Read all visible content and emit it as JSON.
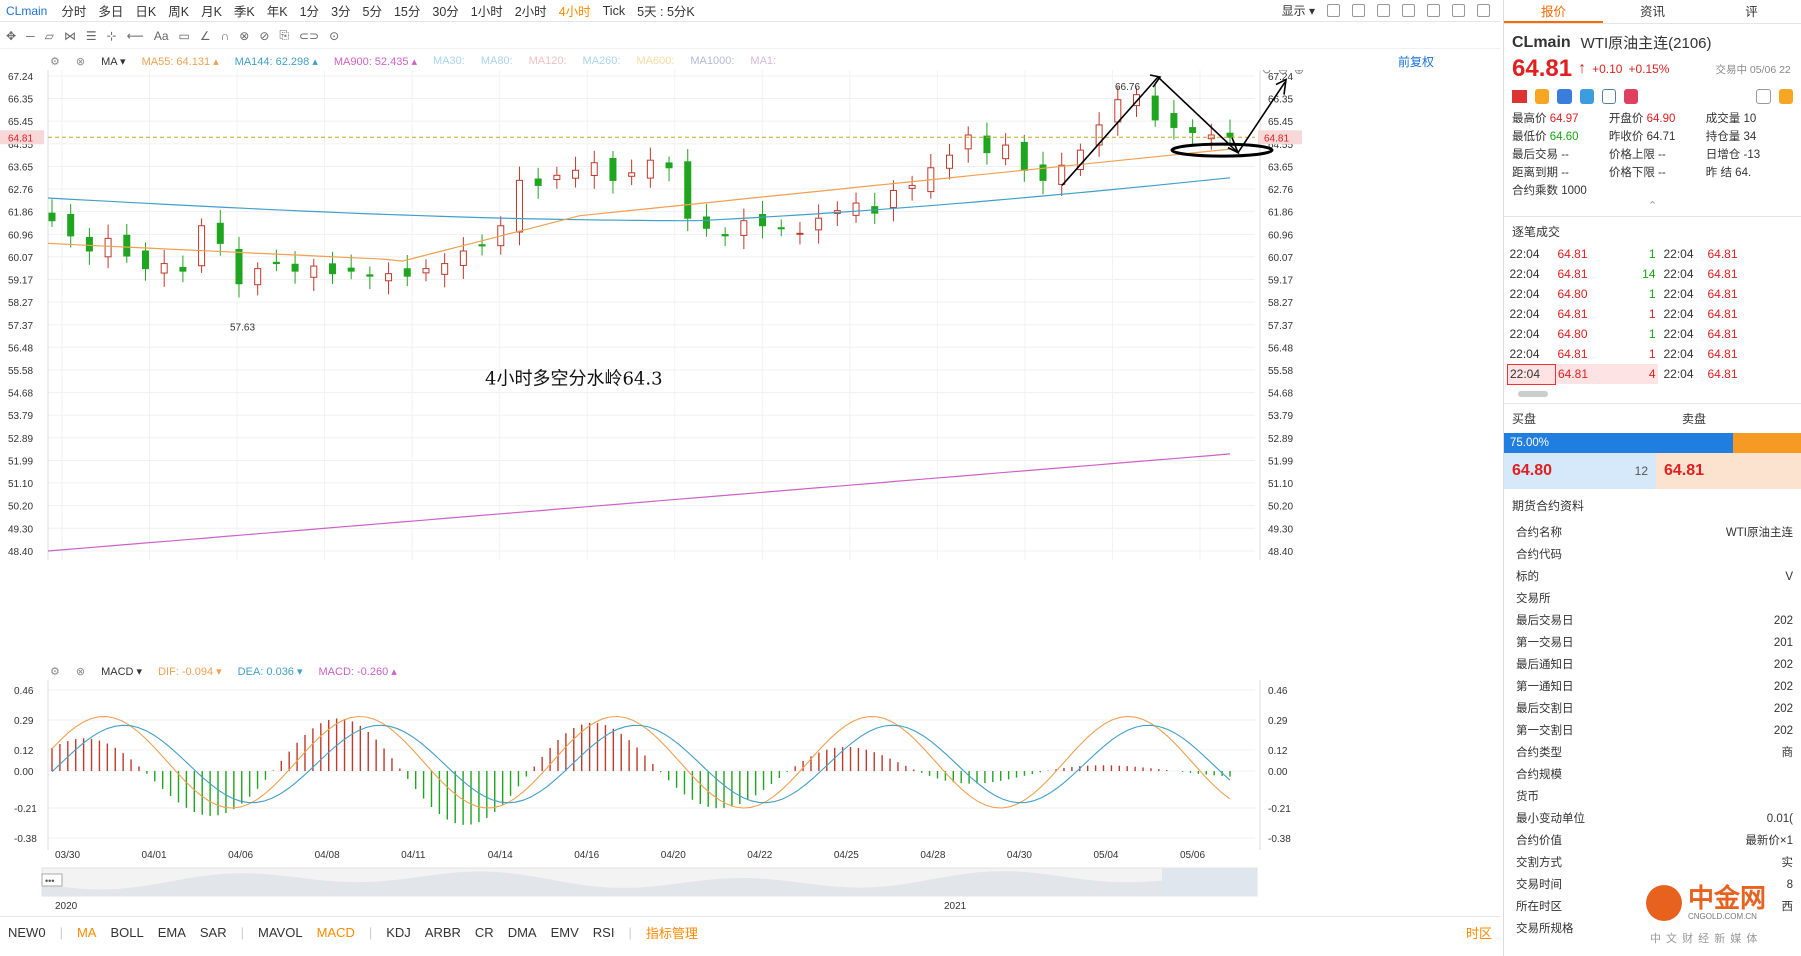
{
  "topbar": {
    "symbol": "CLmain",
    "periods": [
      "分时",
      "多日",
      "日K",
      "周K",
      "月K",
      "季K",
      "年K",
      "1分",
      "3分",
      "5分",
      "15分",
      "30分",
      "1小时",
      "2小时",
      "4小时",
      "Tick",
      "5天 : 5分K"
    ],
    "active_period": "4小时",
    "display_label": "显示"
  },
  "toolbar": {
    "items": [
      "✥",
      "─",
      "▱",
      "⋈",
      "☰",
      "⊹",
      "⟵",
      "Aa",
      "▭",
      "∠",
      "∩",
      "⊗",
      "⊘",
      "⎘",
      "⊂⊃",
      "⊙"
    ]
  },
  "ma_legend": {
    "label": "MA",
    "items": [
      {
        "text": "MA55: 64.131",
        "color": "#f0a050"
      },
      {
        "text": "MA144: 62.298",
        "color": "#3fa0c9"
      },
      {
        "text": "MA900: 52.435",
        "color": "#d060c8"
      },
      {
        "text": "MA30:",
        "color": "#aad4ee"
      },
      {
        "text": "MA80:",
        "color": "#aad4ee"
      },
      {
        "text": "MA120:",
        "color": "#f2c0c0"
      },
      {
        "text": "MA260:",
        "color": "#aad4ee"
      },
      {
        "text": "MA600:",
        "color": "#f2dca0"
      },
      {
        "text": "MA1000:",
        "color": "#b8b8d8"
      },
      {
        "text": "MA1:",
        "color": "#d8b8d8"
      }
    ],
    "restore": "前复权"
  },
  "macd_legend": {
    "label": "MACD",
    "dif": "DIF: -0.094",
    "dea": "DEA: 0.036",
    "macd": "MACD: -0.260"
  },
  "y_axis": [
    "67.24",
    "66.35",
    "65.45",
    "64.55",
    "63.65",
    "62.76",
    "61.86",
    "60.96",
    "60.07",
    "59.17",
    "58.27",
    "57.37",
    "56.48",
    "55.58",
    "54.68",
    "53.79",
    "52.89",
    "51.99",
    "51.10",
    "50.20",
    "49.30",
    "48.40"
  ],
  "current_price_tag": "64.81",
  "macd_axis": [
    "0.46",
    "0.29",
    "0.12",
    "0.00",
    "-0.21",
    "-0.38"
  ],
  "x_axis": [
    "03/30",
    "04/01",
    "04/06",
    "04/08",
    "04/11",
    "04/14",
    "04/16",
    "04/20",
    "04/22",
    "04/25",
    "04/28",
    "04/30",
    "05/04",
    "05/06"
  ],
  "annotations": {
    "high": "66.76",
    "low": "57.63",
    "note": "4小时多空分水岭64.3"
  },
  "navigator": {
    "year_left": "2020",
    "year_right": "2021",
    "dots": "•••"
  },
  "bottom_indicators": [
    "NEW0",
    "MA",
    "BOLL",
    "EMA",
    "SAR",
    "MAVOL",
    "MACD",
    "KDJ",
    "ARBR",
    "CR",
    "DMA",
    "EMV",
    "RSI",
    "指标管理"
  ],
  "bottom_active": [
    "MA",
    "MACD"
  ],
  "bottom_right": "时区",
  "quote": {
    "tabs": [
      "报价",
      "资讯",
      "评"
    ],
    "symbol": "CLmain",
    "name": "WTI原油主连(2106)",
    "price": "64.81",
    "change": "+0.10",
    "pct": "+0.15%",
    "status": "交易中 05/06 22",
    "stats": [
      [
        "最高价",
        "64.97",
        "开盘价",
        "64.90",
        "成交量",
        "10"
      ],
      [
        "最低价",
        "64.60",
        "昨收价",
        "64.71",
        "持仓量",
        "34"
      ],
      [
        "最后交易",
        "--",
        "价格上限",
        "--",
        "日增仓",
        "-13"
      ],
      [
        "距离到期",
        "--",
        "价格下限",
        "--",
        "昨 结",
        "64."
      ]
    ],
    "multiplier": "合约乘数 1000"
  },
  "trades": {
    "title": "逐笔成交",
    "rows": [
      [
        "22:04",
        "64.81",
        "1",
        "22:04",
        "64.81"
      ],
      [
        "22:04",
        "64.81",
        "14",
        "22:04",
        "64.81"
      ],
      [
        "22:04",
        "64.80",
        "1",
        "22:04",
        "64.81"
      ],
      [
        "22:04",
        "64.81",
        "1",
        "22:04",
        "64.81"
      ],
      [
        "22:04",
        "64.80",
        "1",
        "22:04",
        "64.81"
      ],
      [
        "22:04",
        "64.81",
        "1",
        "22:04",
        "64.81"
      ],
      [
        "22:04",
        "64.81",
        "4",
        "22:04",
        "64.81"
      ]
    ]
  },
  "orderbook": {
    "buy": "买盘",
    "sell": "卖盘",
    "pct": "75.00%",
    "bid": "64.80",
    "bid_vol": "12",
    "ask": "64.81"
  },
  "contract": {
    "title": "期货合约资料",
    "rows": [
      [
        "合约名称",
        "WTI原油主连"
      ],
      [
        "合约代码",
        ""
      ],
      [
        "标的",
        "V"
      ],
      [
        "交易所",
        ""
      ],
      [
        "最后交易日",
        "202"
      ],
      [
        "第一交易日",
        "201"
      ],
      [
        "最后通知日",
        "202"
      ],
      [
        "第一通知日",
        "202"
      ],
      [
        "最后交割日",
        "202"
      ],
      [
        "第一交割日",
        "202"
      ],
      [
        "合约类型",
        "商"
      ],
      [
        "合约规模",
        ""
      ],
      [
        "货币",
        ""
      ],
      [
        "最小变动单位",
        "0.01("
      ],
      [
        "合约价值",
        "最新价×1"
      ],
      [
        "交割方式",
        "实"
      ],
      [
        "交易时间",
        "8"
      ],
      [
        "所在时区",
        "西"
      ],
      [
        "交易所规格",
        ""
      ]
    ]
  },
  "watermark": {
    "logo": "中金网",
    "sub": "CNGOLD.COM.CN",
    "tagline": "中 文 财 经 新 媒 体"
  },
  "chart_data": [
    {
      "type": "candlestick",
      "title": "",
      "x_ticks": [
        "03/30",
        "04/01",
        "04/06",
        "04/08",
        "04/11",
        "04/14",
        "04/16",
        "04/20",
        "04/22",
        "04/25",
        "04/28",
        "04/30",
        "05/04",
        "05/06"
      ],
      "ylim": [
        48.0,
        67.6
      ],
      "close_series_approx": [
        61.5,
        60.9,
        60.3,
        60.8,
        60.1,
        59.6,
        59.8,
        59.5,
        61.3,
        60.6,
        59.0,
        59.6,
        59.8,
        59.5,
        59.7,
        59.4,
        59.5,
        59.3,
        59.4,
        59.3,
        59.6,
        59.8,
        60.3,
        60.5,
        61.3,
        63.1,
        62.9,
        63.3,
        63.5,
        63.8,
        63.1,
        63.4,
        63.9,
        63.6,
        61.6,
        61.2,
        60.9,
        61.5,
        61.3,
        61.2,
        61.0,
        61.6,
        61.9,
        62.2,
        61.8,
        62.7,
        62.9,
        63.6,
        64.1,
        64.9,
        64.2,
        64.5,
        63.5,
        63.1,
        63.7,
        64.3,
        65.3,
        66.3,
        66.5,
        65.5,
        65.2,
        65.0,
        64.9,
        64.81
      ],
      "highs": [
        {
          "label": "66.76",
          "value": 66.76
        }
      ],
      "lows": [
        {
          "label": "57.63",
          "value": 57.63
        }
      ],
      "series": [
        {
          "name": "MA55",
          "value_last": 64.131,
          "color": "#f0a050"
        },
        {
          "name": "MA144",
          "value_last": 62.298,
          "color": "#3fa0c9"
        },
        {
          "name": "MA900",
          "value_last": 52.435,
          "color": "#d060c8"
        }
      ],
      "current_price": 64.81,
      "annotation": "4小时多空分水岭64.3"
    },
    {
      "type": "bar",
      "title": "",
      "ylim": [
        -0.38,
        0.46
      ],
      "series": [
        {
          "name": "DIF",
          "value_last": -0.094
        },
        {
          "name": "DEA",
          "value_last": 0.036
        },
        {
          "name": "MACD",
          "value_last": -0.26
        }
      ]
    }
  ]
}
